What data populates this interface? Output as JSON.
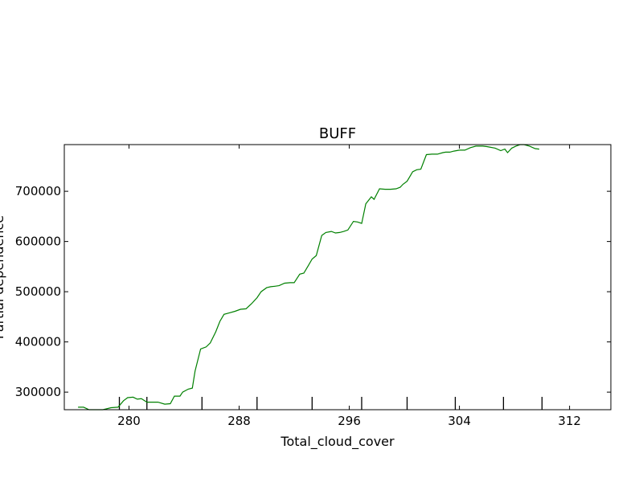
{
  "chart_data": {
    "type": "line",
    "title": "BUFF",
    "xlabel": "Total_cloud_cover",
    "ylabel": "Partial dependence",
    "xlim": [
      275.3,
      315.0
    ],
    "ylim": [
      265000,
      793000
    ],
    "xticks": [
      280,
      288,
      296,
      304,
      312
    ],
    "yticks": [
      300000,
      400000,
      500000,
      600000,
      700000
    ],
    "xtick_labels": [
      "280",
      "288",
      "296",
      "304",
      "312"
    ],
    "ytick_labels": [
      "300000",
      "400000",
      "500000",
      "600000",
      "700000"
    ],
    "rug_x": [
      279.3,
      281.3,
      285.3,
      289.3,
      293.3,
      296.9,
      300.2,
      303.7,
      307.2,
      310.0
    ],
    "grid": false,
    "series": [
      {
        "color": "#008000",
        "x": [
          276.3,
          276.7,
          277.1,
          277.5,
          278.1,
          278.7,
          279.2,
          279.6,
          279.9,
          280.3,
          280.6,
          280.9,
          281.3,
          281.6,
          282.1,
          282.6,
          283.0,
          283.3,
          283.7,
          283.9,
          284.3,
          284.6,
          284.8,
          285.2,
          285.6,
          285.9,
          286.3,
          286.6,
          286.9,
          287.3,
          287.7,
          288.1,
          288.5,
          288.9,
          289.3,
          289.6,
          290.0,
          290.3,
          290.6,
          290.9,
          291.3,
          291.7,
          292.0,
          292.4,
          292.7,
          293.0,
          293.3,
          293.6,
          294.0,
          294.3,
          294.7,
          295.0,
          295.3,
          295.6,
          295.9,
          296.3,
          296.6,
          296.9,
          297.2,
          297.6,
          297.8,
          298.2,
          298.6,
          299.0,
          299.4,
          299.7,
          299.9,
          300.2,
          300.6,
          300.9,
          301.2,
          301.6,
          302.0,
          302.4,
          302.8,
          303.0,
          303.3,
          303.6,
          304.0,
          304.4,
          304.8,
          305.2,
          305.5,
          305.7,
          306.0,
          306.2,
          306.6,
          307.0,
          307.3,
          307.5,
          307.8,
          308.1,
          308.4,
          308.7,
          309.1,
          309.5,
          309.8
        ],
        "y": [
          270000,
          270000,
          265000,
          265000,
          265000,
          269000,
          270000,
          283000,
          289000,
          290000,
          286000,
          287000,
          280000,
          280000,
          280000,
          276000,
          277000,
          292000,
          292000,
          300000,
          306000,
          308000,
          342000,
          386000,
          390000,
          398000,
          420000,
          441000,
          455000,
          458000,
          461000,
          465000,
          466000,
          476000,
          488000,
          500000,
          508000,
          510000,
          511000,
          512000,
          517000,
          518000,
          518000,
          535000,
          537000,
          551000,
          565000,
          572000,
          612000,
          618000,
          620000,
          617000,
          618000,
          620000,
          623000,
          640000,
          639000,
          636000,
          675000,
          689000,
          684000,
          705000,
          704000,
          704000,
          705000,
          708000,
          714000,
          720000,
          739000,
          743000,
          744000,
          773000,
          774000,
          774000,
          777000,
          778000,
          778000,
          780000,
          782000,
          782000,
          787000,
          790000,
          790000,
          790000,
          789000,
          788000,
          786000,
          781000,
          784000,
          777000,
          786000,
          790000,
          793000,
          793000,
          790000,
          785000,
          784000
        ]
      }
    ]
  }
}
